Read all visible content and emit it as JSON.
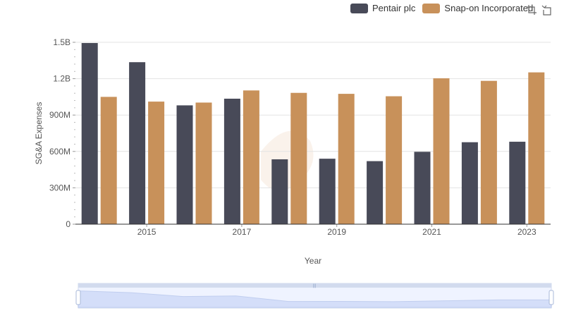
{
  "chart_data": {
    "type": "bar",
    "xlabel": "Year",
    "ylabel": "SG&A Expenses",
    "ylim": [
      0,
      1500000000
    ],
    "y_ticks": [
      0,
      300000000,
      600000000,
      900000000,
      1200000000,
      1500000000
    ],
    "y_tick_labels": [
      "0",
      "300M",
      "600M",
      "900M",
      "1.2B",
      "1.5B"
    ],
    "categories": [
      2014,
      2015,
      2016,
      2017,
      2018,
      2019,
      2020,
      2021,
      2022,
      2023
    ],
    "x_tick_labels": [
      "2015",
      "2017",
      "2019",
      "2021",
      "2023"
    ],
    "legend_position": "top-right",
    "grid": true,
    "series": [
      {
        "name": "Pentair plc",
        "color": "#484a58",
        "values": [
          1494000000,
          1336000000,
          980000000,
          1035000000,
          535000000,
          540000000,
          520000000,
          597000000,
          676000000,
          680000000
        ]
      },
      {
        "name": "Snap-on Incorporated",
        "color": "#c8915a",
        "values": [
          1050000000,
          1011000000,
          1003000000,
          1103000000,
          1083000000,
          1075000000,
          1055000000,
          1203000000,
          1182000000,
          1252000000
        ]
      }
    ],
    "zoom_slider": {
      "start_percent": 0,
      "end_percent": 100
    }
  },
  "toolbar": {
    "zoom_icon": "zoom-select-icon",
    "reset_icon": "zoom-reset-icon"
  }
}
